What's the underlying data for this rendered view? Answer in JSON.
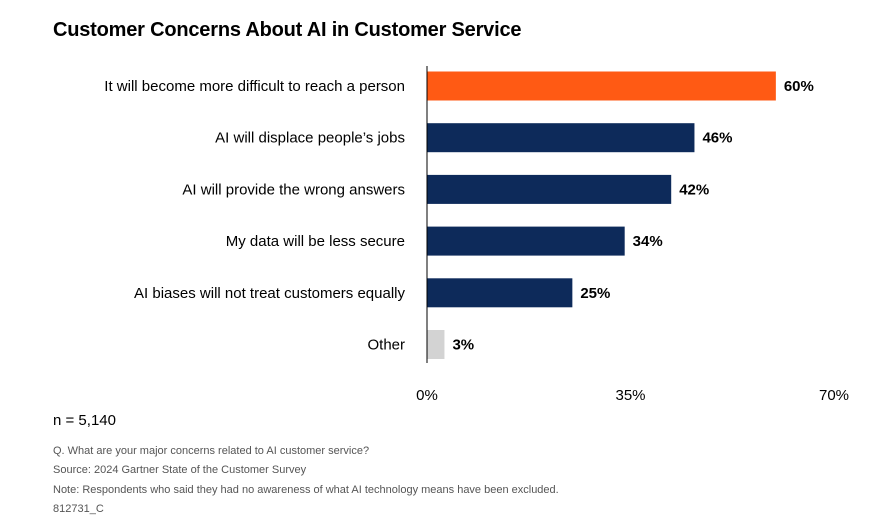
{
  "title": "Customer Concerns About AI in Customer Service",
  "sample": "n = 5,140",
  "footnotes": {
    "question": "Q. What are your major concerns related to AI customer service?",
    "source": "Source: 2024 Gartner State of the Customer Survey",
    "note": "Note: Respondents who said they had no awareness of what AI technology means have been excluded.",
    "id": "812731_C"
  },
  "colors": {
    "highlight": "#FF5A14",
    "primary": "#0D2A5A",
    "other": "#D3D3D3",
    "axis": "#000000"
  },
  "chart_data": {
    "type": "bar",
    "orientation": "horizontal",
    "title": "Customer Concerns About AI in Customer Service",
    "categories": [
      "It will become more difficult to reach a person",
      "AI will displace people’s jobs",
      "AI will provide the wrong answers",
      "My data will be less secure",
      "AI biases will not treat customers equally",
      "Other"
    ],
    "values": [
      60,
      46,
      42,
      34,
      25,
      3
    ],
    "value_labels": [
      "60%",
      "46%",
      "42%",
      "34%",
      "25%",
      "3%"
    ],
    "bar_color_keys": [
      "highlight",
      "primary",
      "primary",
      "primary",
      "primary",
      "other"
    ],
    "xlim": [
      0,
      70
    ],
    "xticks": [
      0,
      35,
      70
    ],
    "xtick_labels": [
      "0%",
      "35%",
      "70%"
    ],
    "xlabel": "",
    "ylabel": "",
    "grid": false,
    "legend": "none"
  }
}
